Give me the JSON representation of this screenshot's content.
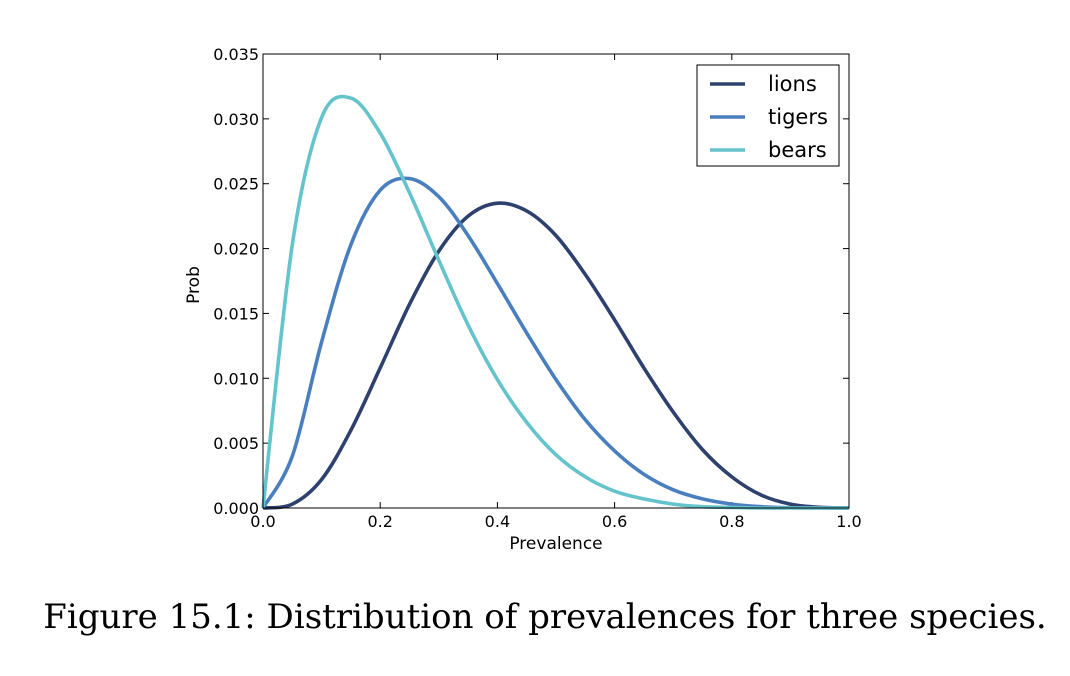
{
  "chart_data": {
    "type": "line",
    "title": "",
    "xlabel": "Prevalence",
    "ylabel": "Prob",
    "xlim": [
      0.0,
      1.0
    ],
    "ylim": [
      0.0,
      0.035
    ],
    "x_ticks": [
      "0.0",
      "0.2",
      "0.4",
      "0.6",
      "0.8",
      "1.0"
    ],
    "y_ticks": [
      "0.000",
      "0.005",
      "0.010",
      "0.015",
      "0.020",
      "0.025",
      "0.030",
      "0.035"
    ],
    "legend_position": "top-right",
    "grid": false,
    "x": [
      0.0,
      0.05,
      0.1,
      0.15,
      0.2,
      0.25,
      0.3,
      0.35,
      0.4,
      0.45,
      0.5,
      0.55,
      0.6,
      0.65,
      0.7,
      0.75,
      0.8,
      0.85,
      0.9,
      0.95,
      1.0
    ],
    "series": [
      {
        "name": "lions",
        "color": "#2e416e",
        "values": [
          0.0,
          0.0003,
          0.0022,
          0.006,
          0.0108,
          0.0157,
          0.0198,
          0.0225,
          0.0235,
          0.0229,
          0.021,
          0.018,
          0.0145,
          0.0108,
          0.0074,
          0.0045,
          0.0024,
          0.001,
          0.0003,
          5e-05,
          0.0
        ]
      },
      {
        "name": "tigers",
        "color": "#4a7fbf",
        "values": [
          0.0,
          0.004,
          0.0128,
          0.0203,
          0.0245,
          0.0254,
          0.024,
          0.021,
          0.0173,
          0.0135,
          0.0099,
          0.0068,
          0.0044,
          0.0026,
          0.0014,
          0.0007,
          0.0003,
          0.0001,
          2e-05,
          0.0,
          0.0
        ]
      },
      {
        "name": "bears",
        "color": "#65c3cc",
        "values": [
          0.0,
          0.0203,
          0.0301,
          0.0316,
          0.0289,
          0.0243,
          0.0191,
          0.0141,
          0.0099,
          0.0066,
          0.0041,
          0.0024,
          0.0013,
          0.0007,
          0.0003,
          0.0001,
          4e-05,
          0.0,
          0.0,
          0.0,
          0.0
        ]
      }
    ]
  },
  "caption": "Figure 15.1: Distribution of prevalences for three species."
}
